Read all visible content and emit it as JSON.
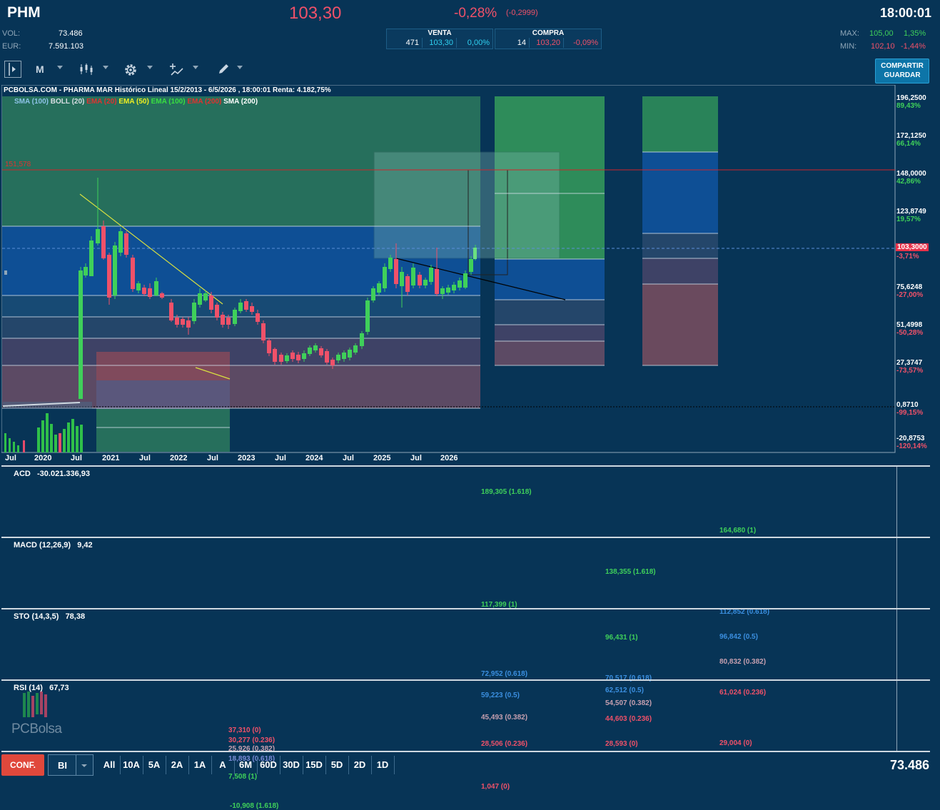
{
  "header": {
    "ticker": "PHM",
    "price": "103,30",
    "change_pct": "-0,28%",
    "change_abs": "(-0,2999)",
    "time": "18:00:01",
    "vol_label": "VOL:",
    "vol_value": "73.486",
    "eur_label": "EUR:",
    "eur_value": "7.591.103",
    "max_label": "MAX:",
    "max_value": "105,00",
    "max_pct": "1,35%",
    "min_label": "MIN:",
    "min_value": "102,10",
    "min_pct": "-1,44%"
  },
  "quotes": {
    "sell_title": "VENTA",
    "sell_qty": "471",
    "sell_price": "103,30",
    "sell_pct": "0,00%",
    "buy_title": "COMPRA",
    "buy_qty": "14",
    "buy_price": "103,20",
    "buy_pct": "-0,09%"
  },
  "toolbar": {
    "period": "M",
    "share_label": "COMPARTIR",
    "save_label": "GUARDAR"
  },
  "chart": {
    "title": "PCBOLSA.COM - PHARMA MAR Histórico Lineal 15/2/2013 - 6/5/2026 , 18:00:01 Renta: 4.182,75%",
    "legend": [
      {
        "text": "SMA (100)",
        "color": "#8ec3e8"
      },
      {
        "text": "BOLL (20)",
        "color": "#d8dee4"
      },
      {
        "text": "EMA (20)",
        "color": "#e0322f"
      },
      {
        "text": "EMA (50)",
        "color": "#f0f020"
      },
      {
        "text": "EMA (100)",
        "color": "#38e040"
      },
      {
        "text": "EMA (200)",
        "color": "#e0322f"
      },
      {
        "text": "SMA (200)",
        "color": "#ffffff"
      }
    ],
    "red_line_label": "151,578",
    "price_tag": "103,3000"
  },
  "chart_data": {
    "type": "candlestick",
    "y_axis": [
      {
        "price": "196,2500",
        "pct": "89,43%"
      },
      {
        "price": "172,1250",
        "pct": "66,14%"
      },
      {
        "price": "148,0000",
        "pct": "42,86%"
      },
      {
        "price": "123,8749",
        "pct": "19,57%"
      },
      {
        "price": "",
        "pct": "-3,71%"
      },
      {
        "price": "75,6248",
        "pct": "-27,00%"
      },
      {
        "price": "51,4998",
        "pct": "-50,28%"
      },
      {
        "price": "27,3747",
        "pct": "-73,57%"
      },
      {
        "price": "0,8710",
        "pct": "-99,15%"
      },
      {
        "price": "-20,8753",
        "pct": "-120,14%"
      }
    ],
    "x_axis": [
      "Jul",
      "2020",
      "Jul",
      "2021",
      "Jul",
      "2022",
      "Jul",
      "2023",
      "Jul",
      "2024",
      "Jul",
      "2025",
      "Jul",
      "2026"
    ],
    "fib_labels": [
      "189,305 (1.618)",
      "164,680 (1)",
      "138,355 (1.618)",
      "117,399 (1)",
      "112,852 (0.618)",
      "96,431 (1)",
      "96,842 (0.5)",
      "80,832 (0.382)",
      "72,952 (0.618)",
      "70,517 (0.618)",
      "62,512 (0.5)",
      "61,024 (0.236)",
      "59,223 (0.5)",
      "54,507 (0.382)",
      "45,493 (0.382)",
      "44,603 (0.236)",
      "37,310 (0)",
      "30,277 (0.236)",
      "28,506 (0.236)",
      "28,593 (0)",
      "29,004 (0)",
      "25,926 (0.382)",
      "18,893 (0.618)",
      "7,508 (1)",
      "1,047 (0)",
      "-10,908 (1.618)"
    ]
  },
  "panels": [
    {
      "name": "ACD",
      "value": "-30.021.336,93"
    },
    {
      "name": "MACD (12,26,9)",
      "value": "9,42"
    },
    {
      "name": "STO (14,3,5)",
      "value": "78,38"
    },
    {
      "name": "RSI (14)",
      "value": "67,73"
    }
  ],
  "logo_text": "PCBolsa",
  "bottom": {
    "config": "CONF.",
    "mode": "BI",
    "ranges": [
      "All",
      "10A",
      "5A",
      "2A",
      "1A",
      "A",
      "6M",
      "60D",
      "30D",
      "15D",
      "5D",
      "2D",
      "1D"
    ],
    "volume": "73.486"
  }
}
